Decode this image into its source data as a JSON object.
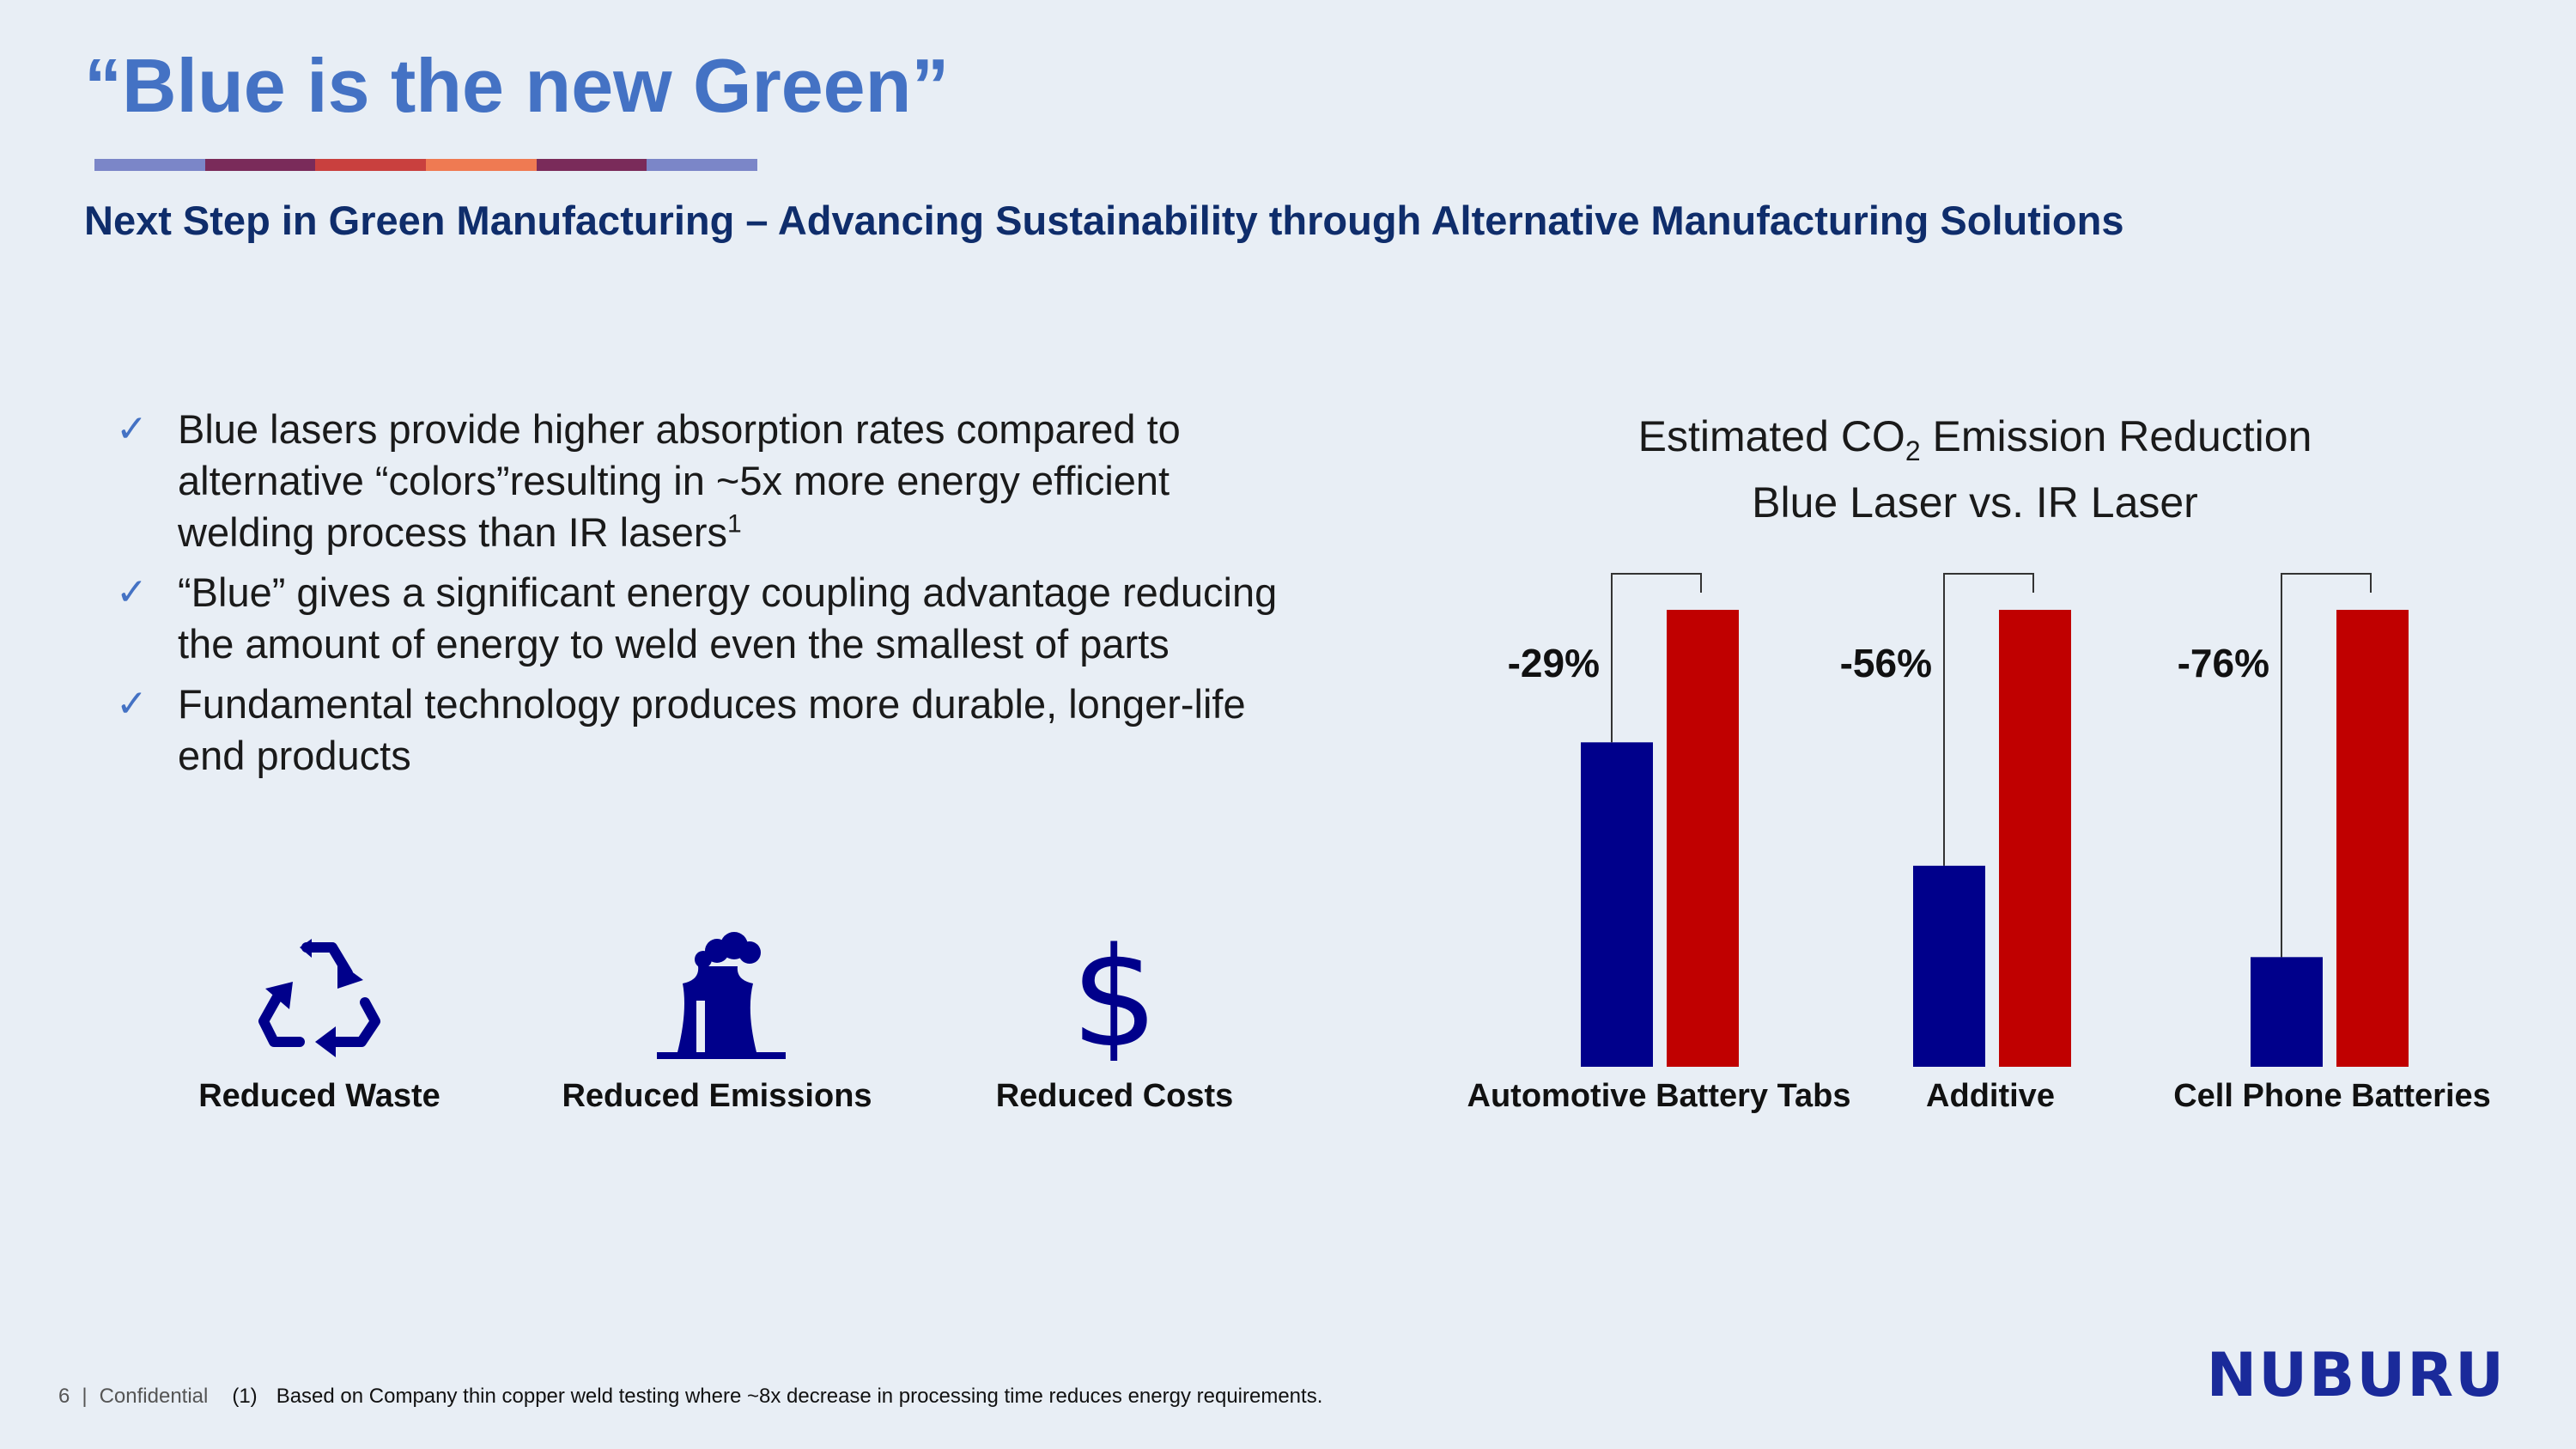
{
  "slide": {
    "title": "“Blue is the new Green”",
    "subtitle": "Next Step in Green Manufacturing – Advancing Sustainability through Alternative Manufacturing Solutions",
    "accent_colors": [
      "#7b86c8",
      "#7a2b5a",
      "#c9403e",
      "#ef7a52",
      "#7a2b5a",
      "#7b86c8"
    ]
  },
  "bullets": [
    {
      "icon": "checkmark-icon",
      "text": "Blue lasers provide higher absorption rates compared to alternative “colors”resulting in ~5x more energy efficient welding process than IR lasers",
      "sup": "1"
    },
    {
      "icon": "checkmark-icon",
      "text": "“Blue” gives a significant energy coupling advantage reducing the amount of energy to weld even the smallest of parts",
      "sup": ""
    },
    {
      "icon": "checkmark-icon",
      "text": "Fundamental technology produces more durable, longer-life end products",
      "sup": ""
    }
  ],
  "benefits": [
    {
      "icon": "recycle-icon",
      "label": "Reduced Waste"
    },
    {
      "icon": "factory-emissions-icon",
      "label": "Reduced Emissions"
    },
    {
      "icon": "dollar-icon",
      "label": "Reduced Costs"
    }
  ],
  "chart_data": {
    "type": "bar",
    "title_line1_pre": "Estimated CO",
    "title_line1_sub": "2",
    "title_line1_post": " Emission Reduction",
    "title_line2": "Blue Laser vs. IR Laser",
    "categories": [
      "Automotive Battery Tabs",
      "Additive",
      "Cell Phone Batteries"
    ],
    "series": [
      {
        "name": "Blue Laser",
        "color": "#00008b",
        "values": [
          71,
          44,
          24
        ]
      },
      {
        "name": "IR Laser",
        "color": "#c00000",
        "values": [
          100,
          100,
          100
        ]
      }
    ],
    "annotations": [
      "-29%",
      "-56%",
      "-76%"
    ],
    "ylim": [
      0,
      100
    ],
    "legend": "none",
    "grid": false
  },
  "footer": {
    "page_number": "6",
    "separator": "|",
    "confidential": "Confidential",
    "footnote_marker": "(1)",
    "footnote_text": "Based on Company thin copper weld testing where ~8x decrease in processing time reduces energy requirements."
  },
  "logo": {
    "text": "NUBURU"
  }
}
